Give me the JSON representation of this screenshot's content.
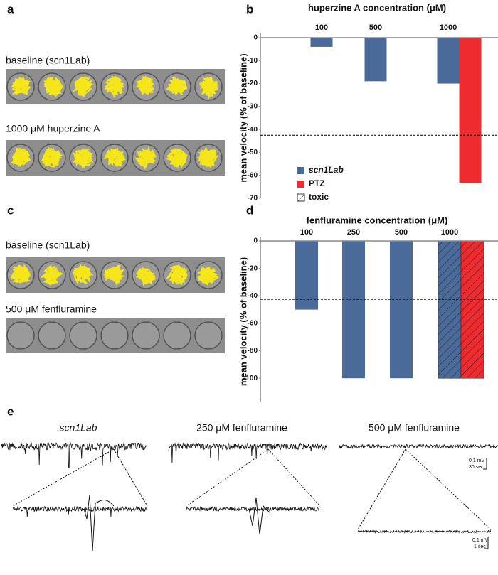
{
  "panels": {
    "a": {
      "label": "a",
      "captions": [
        "baseline (scn1Lab)",
        "1000 μM huperzine A"
      ]
    },
    "c": {
      "label": "c",
      "captions": [
        "baseline (scn1Lab)",
        "500 μM fenfluramine"
      ]
    },
    "e": {
      "label": "e",
      "titles": [
        "scn1Lab",
        "250 μM fenfluramine",
        "500 μM fenfluramine"
      ],
      "scale_top": [
        "0.1 mV",
        "30 sec"
      ],
      "scale_bottom": [
        "0.1 mV",
        "1 sec"
      ]
    }
  },
  "chart_data": [
    {
      "type": "bar",
      "panel": "b",
      "title": "huperzine A concentration (μM)",
      "y_label": "mean velocity (% of baseline)",
      "categories": [
        "100",
        "500",
        "1000"
      ],
      "series": [
        {
          "name": "scn1Lab",
          "color": "#4a6b9a",
          "values": [
            -4,
            -19,
            -20
          ]
        },
        {
          "name": "PTZ",
          "color": "#ee2b2e",
          "values": [
            null,
            null,
            -63.5
          ]
        }
      ],
      "hatch_label": "toxic",
      "threshold": -42.5,
      "ylim": [
        -70,
        0
      ],
      "yticks": [
        0,
        -10,
        -20,
        -30,
        -40,
        -50,
        -60,
        -70
      ]
    },
    {
      "type": "bar",
      "panel": "d",
      "title": "fenfluramine concentration (μM)",
      "y_label": "mean velocity (% of baseline)",
      "categories": [
        "100",
        "250",
        "500",
        "1000"
      ],
      "series": [
        {
          "name": "scn1Lab",
          "color": "#4a6b9a",
          "values": [
            -50,
            -100,
            -100,
            -100
          ]
        },
        {
          "name": "PTZ",
          "color": "#ee2b2e",
          "values": [
            null,
            null,
            null,
            -100
          ]
        }
      ],
      "toxic": [
        false,
        false,
        false,
        true
      ],
      "threshold": -42.5,
      "ylim": [
        -117.5,
        0
      ],
      "yticks": [
        0,
        -20,
        -40,
        -60,
        -80,
        -100
      ]
    }
  ]
}
